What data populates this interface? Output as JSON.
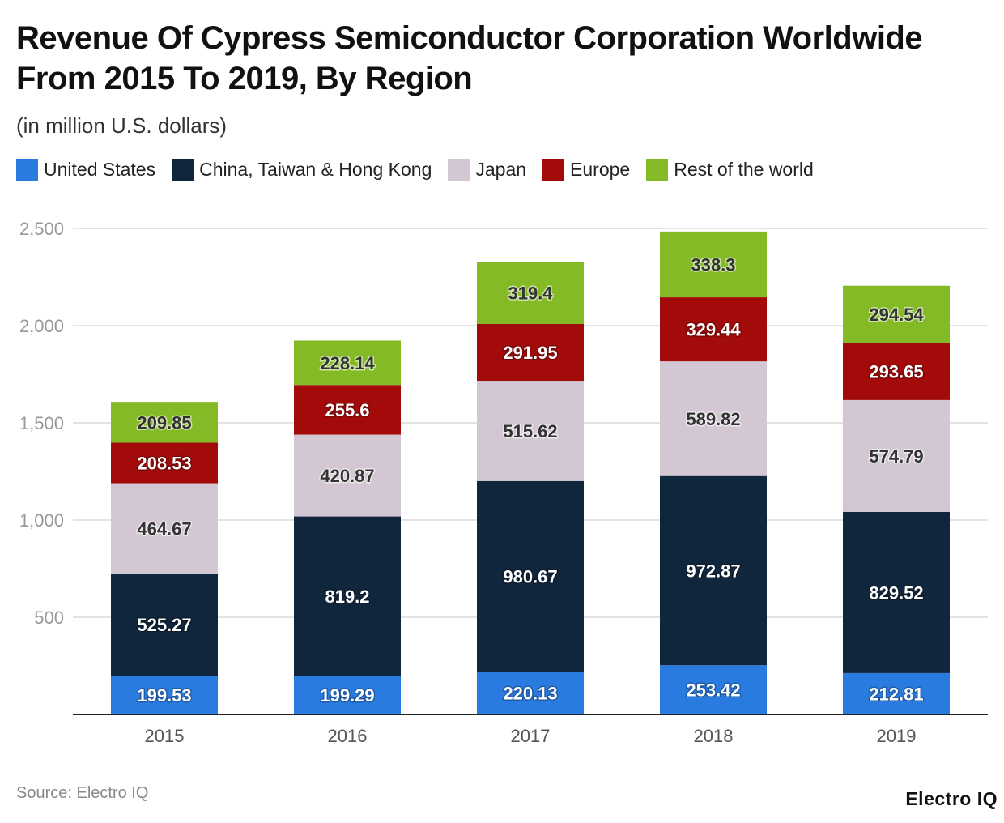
{
  "title": "Revenue Of Cypress Semiconductor Corporation Worldwide From 2015 To 2019, By Region",
  "subtitle": "(in million U.S. dollars)",
  "source": "Source: Electro IQ",
  "logo": "Electro IQ",
  "chart_data": {
    "type": "bar",
    "stacked": true,
    "title": "Revenue Of Cypress Semiconductor Corporation Worldwide From 2015 To 2019, By Region",
    "subtitle": "(in million U.S. dollars)",
    "categories": [
      "2015",
      "2016",
      "2017",
      "2018",
      "2019"
    ],
    "ylim": [
      0,
      2500
    ],
    "yticks": [
      500,
      1000,
      1500,
      2000,
      2500
    ],
    "ytick_labels": [
      "500",
      "1,000",
      "1,500",
      "2,000",
      "2,500"
    ],
    "grid": true,
    "legend_position": "top-left",
    "series": [
      {
        "name": "United States",
        "color": "#2a7be0",
        "label_color": "#ffffff",
        "values": [
          199.53,
          199.29,
          220.13,
          253.42,
          212.81
        ]
      },
      {
        "name": "China, Taiwan & Hong Kong",
        "color": "#10263d",
        "label_color": "#ffffff",
        "values": [
          525.27,
          819.2,
          980.67,
          972.87,
          829.52
        ]
      },
      {
        "name": "Japan",
        "color": "#d3c7d3",
        "label_color": "#333333",
        "values": [
          464.67,
          420.87,
          515.62,
          589.82,
          574.79
        ]
      },
      {
        "name": "Europe",
        "color": "#a30b0b",
        "label_color": "#ffffff",
        "values": [
          208.53,
          255.6,
          291.95,
          329.44,
          293.65
        ]
      },
      {
        "name": "Rest of the world",
        "color": "#85ba27",
        "label_color": "#333333",
        "values": [
          209.85,
          228.14,
          319.4,
          338.3,
          294.54
        ]
      }
    ]
  }
}
